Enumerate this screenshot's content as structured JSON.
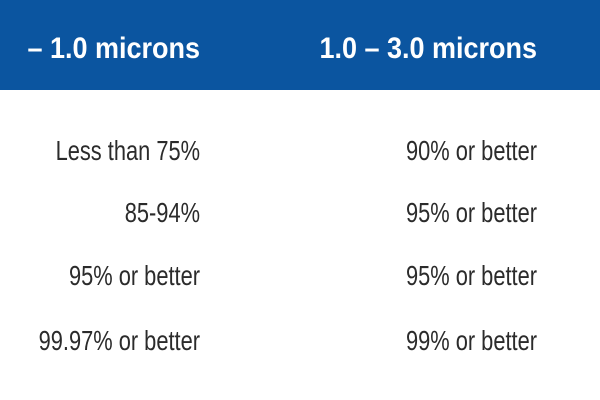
{
  "table": {
    "header": [
      "– 1.0 microns",
      "1.0 – 3.0 microns"
    ],
    "rows": [
      [
        "Less than 75%",
        "90% or better"
      ],
      [
        "85-94%",
        "95% or better"
      ],
      [
        "95% or better",
        "95% or better"
      ],
      [
        "99.97% or better",
        "99% or better"
      ]
    ]
  }
}
